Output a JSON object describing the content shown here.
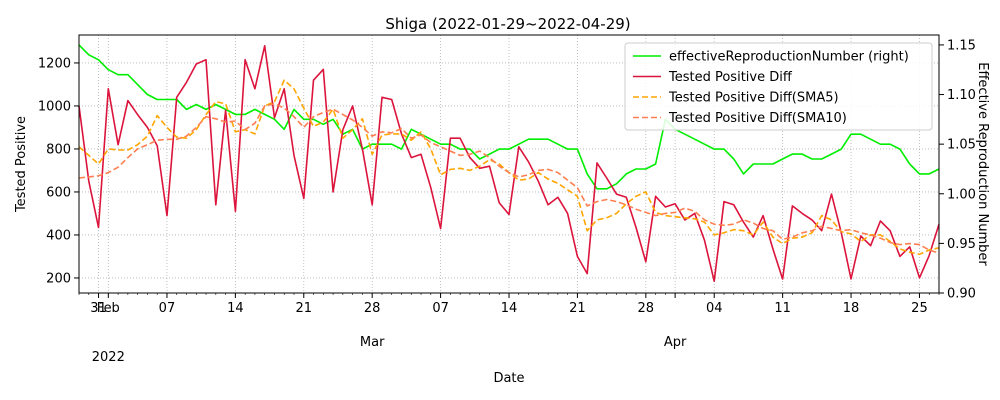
{
  "chart_data": {
    "type": "line",
    "title": "Shiga (2022-01-29~2022-04-29)",
    "xlabel": "Date",
    "ylabel": "Tested Positive",
    "y2label": "Effective Reproduction Number",
    "start_date": "2022-01-29",
    "ylim": [
      130,
      1330
    ],
    "y2lim": [
      0.9,
      1.16
    ],
    "grid": true,
    "legend_position": "upper-right",
    "x_ticks": [
      {
        "day": 2,
        "label": "31"
      },
      {
        "day": 3,
        "label": "Feb",
        "sub": "2022"
      },
      {
        "day": 9,
        "label": "07"
      },
      {
        "day": 16,
        "label": "14"
      },
      {
        "day": 23,
        "label": "21"
      },
      {
        "day": 30,
        "label": "28",
        "month": "Mar"
      },
      {
        "day": 37,
        "label": "07"
      },
      {
        "day": 44,
        "label": "14"
      },
      {
        "day": 51,
        "label": "21"
      },
      {
        "day": 58,
        "label": "28"
      },
      {
        "day": 61,
        "label": "",
        "month": "Apr"
      },
      {
        "day": 65,
        "label": "04"
      },
      {
        "day": 72,
        "label": "11"
      },
      {
        "day": 79,
        "label": "18"
      },
      {
        "day": 86,
        "label": "25"
      }
    ],
    "y_ticks": [
      200,
      400,
      600,
      800,
      1000,
      1200
    ],
    "y2_ticks": [
      0.9,
      0.95,
      1.0,
      1.05,
      1.1,
      1.15
    ],
    "y2_tick_labels": [
      "0.90",
      "0.95",
      "1.00",
      "1.05",
      "1.10",
      "1.15"
    ],
    "series": [
      {
        "name": "effectiveReproductionNumber (right)",
        "axis": "right",
        "color": "#00ee00",
        "dash": false,
        "values": [
          1.15,
          1.14,
          1.135,
          1.125,
          1.12,
          1.12,
          1.11,
          1.1,
          1.095,
          1.095,
          1.095,
          1.085,
          1.09,
          1.085,
          1.09,
          1.085,
          1.08,
          1.08,
          1.085,
          1.08,
          1.075,
          1.065,
          1.085,
          1.075,
          1.075,
          1.07,
          1.075,
          1.06,
          1.065,
          1.045,
          1.05,
          1.05,
          1.05,
          1.045,
          1.065,
          1.06,
          1.055,
          1.05,
          1.05,
          1.045,
          1.045,
          1.035,
          1.04,
          1.045,
          1.045,
          1.05,
          1.055,
          1.055,
          1.055,
          1.05,
          1.045,
          1.045,
          1.02,
          1.005,
          1.005,
          1.01,
          1.02,
          1.025,
          1.025,
          1.03,
          1.075,
          1.065,
          1.06,
          1.055,
          1.05,
          1.045,
          1.045,
          1.035,
          1.02,
          1.03,
          1.03,
          1.03,
          1.035,
          1.04,
          1.04,
          1.035,
          1.035,
          1.04,
          1.045,
          1.06,
          1.06,
          1.055,
          1.05,
          1.05,
          1.045,
          1.03,
          1.02,
          1.02,
          1.025
        ]
      },
      {
        "name": "Tested Positive Diff",
        "axis": "left",
        "color": "#dc143c",
        "dash": false,
        "values": [
          1000,
          650,
          435,
          1080,
          820,
          1025,
          960,
          900,
          815,
          490,
          1040,
          1110,
          1195,
          1215,
          540,
          980,
          510,
          1215,
          1080,
          1280,
          945,
          1080,
          770,
          570,
          1120,
          1170,
          600,
          890,
          1000,
          800,
          540,
          1040,
          1030,
          870,
          760,
          775,
          620,
          430,
          850,
          850,
          760,
          710,
          720,
          550,
          495,
          810,
          740,
          650,
          540,
          575,
          500,
          300,
          220,
          735,
          665,
          590,
          575,
          435,
          275,
          580,
          530,
          545,
          470,
          500,
          375,
          185,
          555,
          540,
          460,
          390,
          490,
          335,
          195,
          535,
          500,
          470,
          420,
          590,
          410,
          195,
          395,
          350,
          465,
          420,
          300,
          345,
          200,
          305,
          450
        ]
      },
      {
        "name": "Tested Positive Diff(SMA5)",
        "axis": "left",
        "color": "#ffa500",
        "dash": true,
        "values": [
          810,
          770,
          730,
          800,
          795,
          795,
          820,
          860,
          955,
          900,
          855,
          850,
          890,
          960,
          1020,
          1010,
          880,
          890,
          870,
          1000,
          1020,
          1120,
          1080,
          990,
          905,
          925,
          985,
          850,
          890,
          940,
          775,
          865,
          870,
          870,
          840,
          880,
          800,
          680,
          705,
          710,
          700,
          720,
          750,
          730,
          690,
          655,
          660,
          690,
          660,
          640,
          610,
          580,
          420,
          470,
          480,
          500,
          545,
          580,
          600,
          505,
          490,
          485,
          480,
          475,
          460,
          400,
          410,
          425,
          420,
          400,
          460,
          390,
          360,
          385,
          390,
          410,
          490,
          470,
          415,
          405,
          370,
          400,
          400,
          370,
          335,
          320,
          310,
          330,
          340
        ]
      },
      {
        "name": "Tested Positive Diff(SMA10)",
        "axis": "left",
        "color": "#ff7f50",
        "dash": true,
        "values": [
          665,
          670,
          675,
          690,
          715,
          760,
          800,
          820,
          840,
          845,
          845,
          860,
          900,
          950,
          940,
          925,
          930,
          890,
          920,
          1000,
          1010,
          990,
          950,
          900,
          950,
          970,
          985,
          960,
          935,
          900,
          860,
          880,
          875,
          895,
          850,
          865,
          830,
          810,
          790,
          770,
          775,
          790,
          760,
          720,
          690,
          670,
          680,
          700,
          705,
          690,
          655,
          620,
          535,
          555,
          565,
          555,
          540,
          520,
          505,
          490,
          500,
          505,
          525,
          510,
          470,
          450,
          445,
          450,
          470,
          455,
          430,
          420,
          380,
          390,
          410,
          420,
          440,
          430,
          420,
          425,
          410,
          400,
          385,
          365,
          355,
          360,
          355,
          330,
          315
        ]
      }
    ]
  }
}
